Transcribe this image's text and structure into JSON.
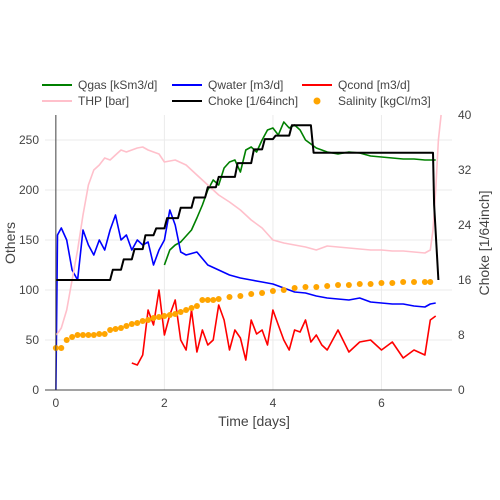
{
  "chart_data": {
    "type": "line",
    "x_axis": {
      "label": "Time [days]",
      "range": [
        -0.2,
        7.3
      ],
      "ticks": [
        0,
        2,
        4,
        6
      ]
    },
    "y_axis_left": {
      "label": "Others",
      "range": [
        0,
        275
      ],
      "ticks": [
        0,
        50,
        100,
        150,
        200,
        250
      ]
    },
    "y_axis_right": {
      "label": "Choke [1/64inch]",
      "range": [
        0,
        40
      ],
      "ticks": [
        0,
        8,
        16,
        24,
        32,
        40
      ]
    },
    "grid": true,
    "legend_position": "top",
    "series": [
      {
        "name": "Qgas [kSm3/d]",
        "color": "#008000",
        "axis": "left",
        "mode": "line",
        "x": [
          2.0,
          2.1,
          2.2,
          2.3,
          2.5,
          2.6,
          2.7,
          2.8,
          2.9,
          3.0,
          3.1,
          3.2,
          3.3,
          3.4,
          3.5,
          3.6,
          3.7,
          3.8,
          3.9,
          4.0,
          4.1,
          4.2,
          4.3,
          4.4,
          4.5,
          4.6,
          4.7,
          4.8,
          4.9,
          5.0,
          5.2,
          5.4,
          5.6,
          5.8,
          6.0,
          6.2,
          6.4,
          6.6,
          6.8,
          7.0
        ],
        "y": [
          125,
          140,
          145,
          148,
          160,
          172,
          185,
          200,
          210,
          205,
          222,
          228,
          230,
          218,
          240,
          243,
          238,
          250,
          260,
          262,
          255,
          268,
          262,
          265,
          260,
          250,
          246,
          242,
          240,
          238,
          236,
          238,
          237,
          234,
          233,
          232,
          231,
          231,
          230,
          230
        ]
      },
      {
        "name": "Qwater [m3/d]",
        "color": "#0000ff",
        "axis": "left",
        "mode": "line",
        "x": [
          0.0,
          0.03,
          0.1,
          0.2,
          0.3,
          0.4,
          0.5,
          0.6,
          0.7,
          0.8,
          0.9,
          1.0,
          1.1,
          1.2,
          1.3,
          1.4,
          1.5,
          1.6,
          1.7,
          1.8,
          1.9,
          2.0,
          2.1,
          2.2,
          2.3,
          2.4,
          2.6,
          2.8,
          3.0,
          3.2,
          3.4,
          3.6,
          3.8,
          4.0,
          4.2,
          4.4,
          4.6,
          4.8,
          5.0,
          5.2,
          5.4,
          5.6,
          5.8,
          6.0,
          6.2,
          6.4,
          6.6,
          6.8,
          6.9,
          7.0
        ],
        "y": [
          0,
          155,
          162,
          150,
          120,
          110,
          160,
          145,
          135,
          150,
          140,
          160,
          175,
          150,
          155,
          140,
          150,
          145,
          148,
          125,
          140,
          150,
          180,
          165,
          138,
          135,
          138,
          125,
          120,
          115,
          112,
          110,
          108,
          106,
          102,
          98,
          97,
          94,
          92,
          91,
          90,
          92,
          88,
          87,
          86,
          86,
          84,
          83,
          86,
          87
        ]
      },
      {
        "name": "Qcond [m3/d]",
        "color": "#ff0000",
        "axis": "left",
        "mode": "line",
        "x": [
          1.4,
          1.5,
          1.6,
          1.7,
          1.8,
          1.9,
          2.0,
          2.1,
          2.2,
          2.3,
          2.4,
          2.5,
          2.6,
          2.7,
          2.8,
          2.9,
          3.0,
          3.1,
          3.2,
          3.3,
          3.4,
          3.5,
          3.6,
          3.7,
          3.8,
          3.9,
          4.0,
          4.1,
          4.2,
          4.3,
          4.4,
          4.5,
          4.6,
          4.7,
          4.8,
          4.9,
          5.0,
          5.2,
          5.4,
          5.6,
          5.8,
          6.0,
          6.2,
          6.4,
          6.6,
          6.8,
          6.9,
          7.0
        ],
        "y": [
          27,
          25,
          35,
          80,
          65,
          100,
          55,
          75,
          90,
          50,
          40,
          80,
          38,
          60,
          45,
          50,
          85,
          70,
          40,
          60,
          52,
          30,
          70,
          56,
          60,
          45,
          80,
          65,
          50,
          40,
          60,
          58,
          70,
          48,
          55,
          45,
          40,
          60,
          38,
          48,
          50,
          40,
          48,
          32,
          40,
          35,
          70,
          74
        ]
      },
      {
        "name": "THP [bar]",
        "color": "#ffc0cb",
        "axis": "left",
        "mode": "line",
        "x": [
          0.0,
          0.05,
          0.1,
          0.2,
          0.3,
          0.4,
          0.5,
          0.6,
          0.7,
          0.8,
          0.9,
          1.0,
          1.1,
          1.2,
          1.3,
          1.4,
          1.5,
          1.6,
          1.7,
          1.8,
          1.9,
          2.0,
          2.2,
          2.4,
          2.6,
          2.8,
          3.0,
          3.2,
          3.4,
          3.6,
          3.8,
          4.0,
          4.2,
          4.4,
          4.6,
          4.8,
          5.0,
          5.2,
          5.4,
          5.6,
          5.8,
          6.0,
          6.2,
          6.4,
          6.6,
          6.8,
          6.9,
          6.95,
          7.0,
          7.05,
          7.1
        ],
        "y": [
          55,
          58,
          62,
          80,
          110,
          140,
          175,
          205,
          220,
          225,
          232,
          230,
          235,
          240,
          238,
          240,
          242,
          243,
          240,
          238,
          236,
          228,
          230,
          225,
          215,
          205,
          195,
          188,
          180,
          170,
          162,
          150,
          147,
          145,
          143,
          140,
          144,
          143,
          142,
          141,
          140,
          140,
          139,
          139,
          138,
          137,
          140,
          160,
          200,
          250,
          275
        ]
      },
      {
        "name": "Choke [1/64inch]",
        "color": "#000000",
        "axis": "right",
        "mode": "line",
        "step": true,
        "x": [
          0.0,
          0.5,
          1.0,
          1.05,
          1.2,
          1.25,
          1.4,
          1.45,
          1.6,
          1.65,
          1.8,
          1.85,
          2.0,
          2.05,
          2.25,
          2.3,
          2.5,
          2.55,
          2.75,
          2.8,
          2.95,
          3.0,
          3.3,
          3.35,
          3.6,
          3.65,
          3.8,
          3.85,
          4.0,
          4.05,
          4.3,
          4.35,
          4.5,
          4.55,
          4.7,
          4.75,
          5.0,
          6.0,
          6.95,
          6.97,
          7.05
        ],
        "y": [
          16,
          16,
          16,
          17.5,
          17.5,
          19,
          19,
          20.5,
          20.5,
          22.5,
          22.5,
          23.5,
          23.5,
          25,
          25,
          26.5,
          26.5,
          28,
          28,
          29.5,
          29.5,
          31,
          31,
          33,
          33,
          35,
          35,
          36.5,
          36.5,
          37,
          37,
          38.5,
          38.5,
          38.5,
          38.5,
          34.5,
          34.5,
          34.5,
          34.5,
          27,
          16
        ]
      },
      {
        "name": "Salinity [kgCl/m3]",
        "color": "#ffa500",
        "axis": "left",
        "mode": "markers",
        "x": [
          0.0,
          0.1,
          0.2,
          0.3,
          0.4,
          0.5,
          0.6,
          0.7,
          0.8,
          0.9,
          1.0,
          1.1,
          1.2,
          1.3,
          1.4,
          1.5,
          1.6,
          1.7,
          1.8,
          1.9,
          2.0,
          2.1,
          2.2,
          2.3,
          2.4,
          2.5,
          2.6,
          2.7,
          2.8,
          2.9,
          3.0,
          3.2,
          3.4,
          3.6,
          3.8,
          4.0,
          4.2,
          4.4,
          4.6,
          4.8,
          5.0,
          5.2,
          5.4,
          5.6,
          5.8,
          6.0,
          6.2,
          6.4,
          6.6,
          6.8,
          6.9
        ],
        "y": [
          42,
          42,
          50,
          53,
          55,
          55,
          55,
          55,
          56,
          56,
          60,
          61,
          62,
          64,
          66,
          67,
          69,
          70,
          72,
          73,
          74,
          75,
          76,
          78,
          80,
          82,
          84,
          90,
          90,
          90,
          91,
          93,
          94,
          96,
          97,
          99,
          100,
          102,
          103,
          103,
          104,
          105,
          105,
          106,
          106,
          107,
          107,
          108,
          108,
          108,
          108
        ]
      }
    ],
    "legend": [
      {
        "label": "Qgas [kSm3/d]",
        "color": "#008000",
        "kind": "line"
      },
      {
        "label": "Qwater [m3/d]",
        "color": "#0000ff",
        "kind": "line"
      },
      {
        "label": "Qcond [m3/d]",
        "color": "#ff0000",
        "kind": "line"
      },
      {
        "label": "THP [bar]",
        "color": "#ffc0cb",
        "kind": "line"
      },
      {
        "label": "Choke [1/64inch]",
        "color": "#000000",
        "kind": "line"
      },
      {
        "label": "Salinity [kgCl/m3]",
        "color": "#ffa500",
        "kind": "marker"
      }
    ]
  }
}
